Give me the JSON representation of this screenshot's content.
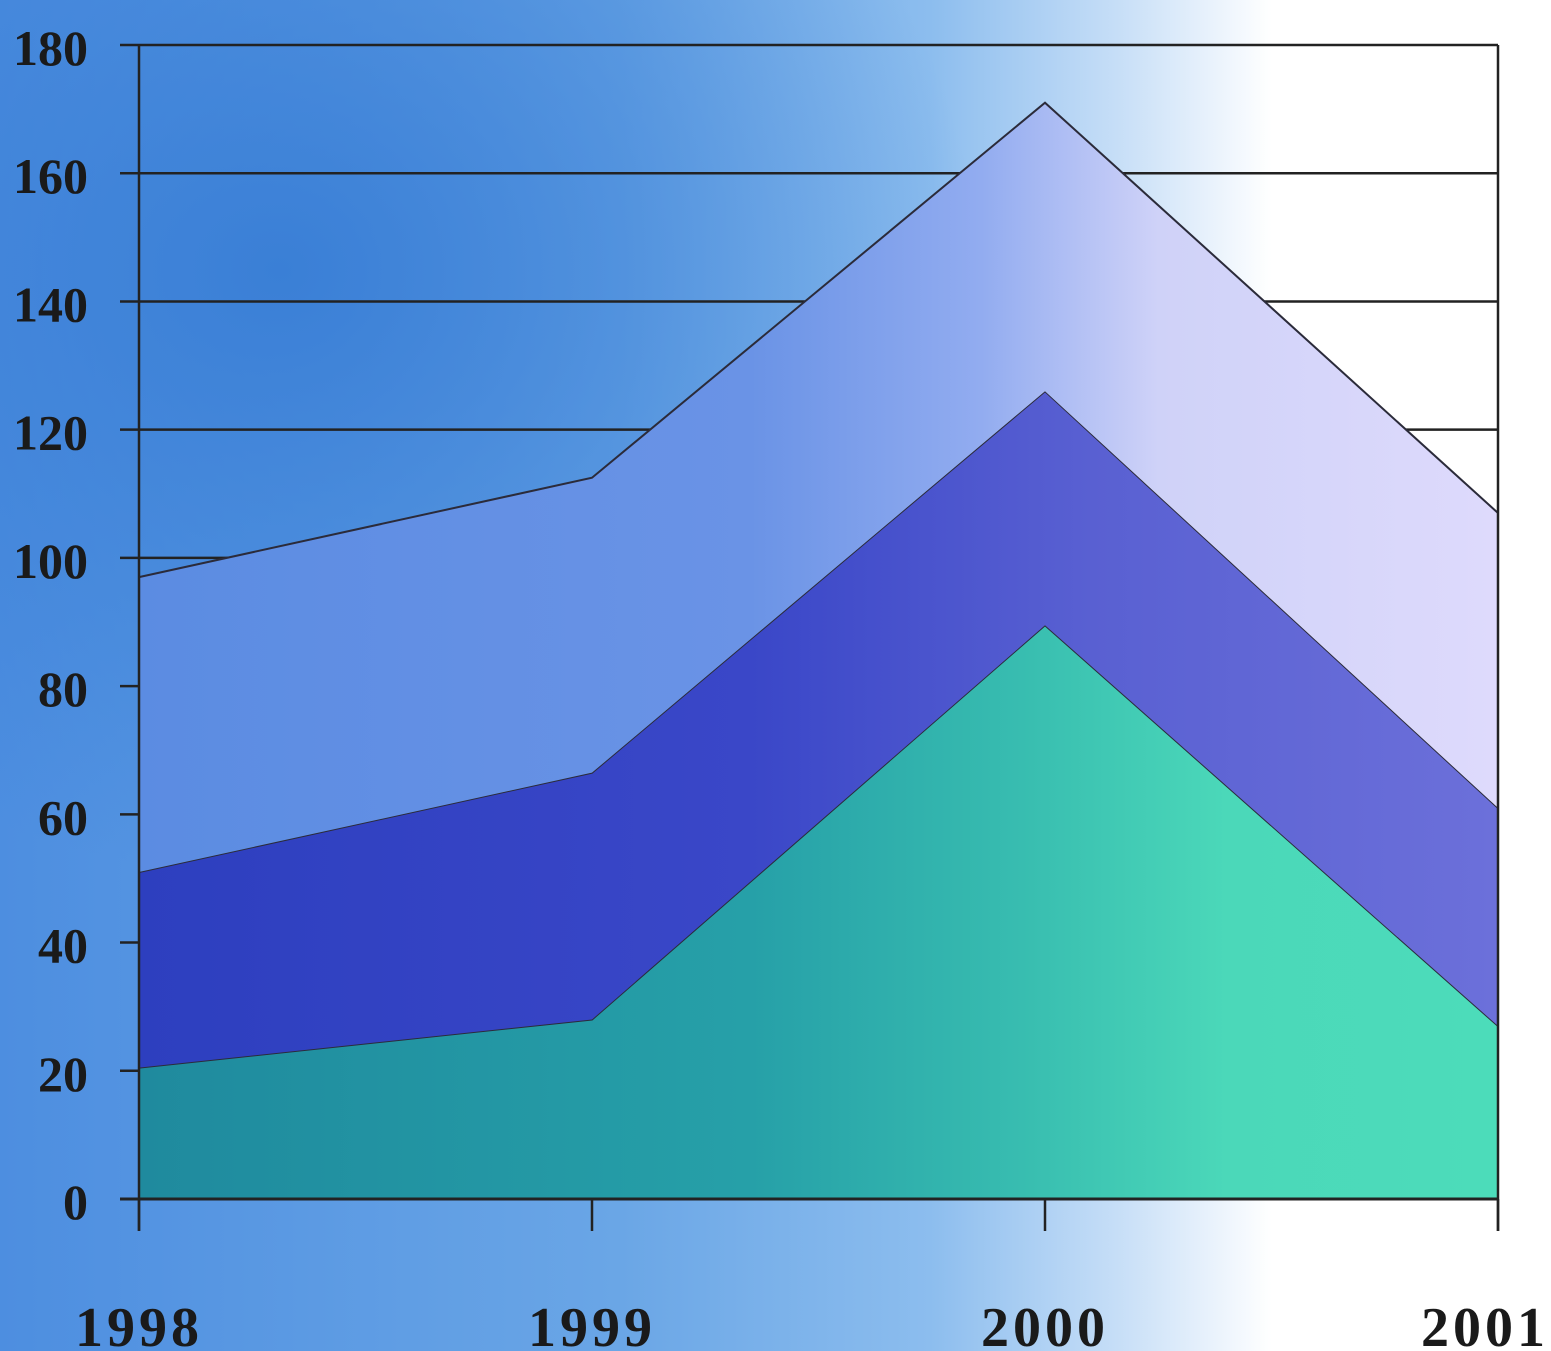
{
  "chart_data": {
    "type": "area",
    "stacked": true,
    "title": "",
    "xlabel": "",
    "ylabel": "",
    "categories": [
      "1998",
      "1999",
      "2000",
      "2001"
    ],
    "ylim": [
      0,
      180
    ],
    "yticks": [
      0,
      20,
      40,
      60,
      80,
      100,
      120,
      140,
      160,
      180
    ],
    "grid": true,
    "legend": "none",
    "series": [
      {
        "values": [
          20.5,
          28,
          89.5,
          27
        ],
        "color": "#2a9aa4"
      },
      {
        "values": [
          30.5,
          38.5,
          36.5,
          34
        ],
        "color": "#3340c4"
      },
      {
        "values": [
          46,
          46,
          45,
          46
        ],
        "color": "#6f8fe4"
      }
    ]
  }
}
